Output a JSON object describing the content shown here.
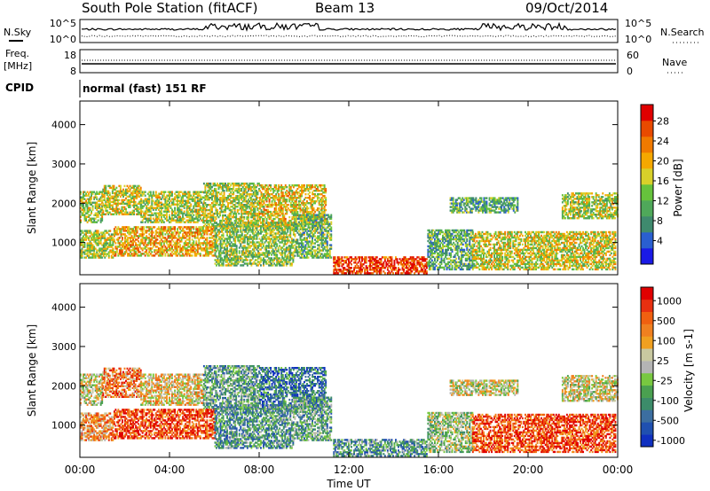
{
  "header": {
    "station": "South Pole Station (fitACF)",
    "beam": "Beam 13",
    "date": "09/Oct/2014"
  },
  "noise_panel": {
    "left_label": "N.Sky",
    "right_label": "N.Search",
    "left_ticks": [
      "10^5",
      "10^0"
    ],
    "right_ticks": [
      "10^5",
      "10^0"
    ]
  },
  "freq_panel": {
    "left_label": "Freq.",
    "left_unit": "[MHz]",
    "left_ticks": [
      "18",
      "8"
    ],
    "right_label": "Nave",
    "right_ticks": [
      "60",
      "0"
    ]
  },
  "cpid": {
    "label": "CPID",
    "value": "normal (fast) 151 RF"
  },
  "chart_data": [
    {
      "type": "heatmap",
      "parameter": "Power",
      "ylabel": "Slant Range [km]",
      "ylim": [
        180,
        4600
      ],
      "yticks": [
        1000,
        2000,
        3000,
        4000
      ],
      "xlim": [
        0,
        24
      ],
      "colorbar": {
        "label": "Power [dB]",
        "ticks": [
          "4",
          "8",
          "12",
          "16",
          "20",
          "24",
          "28"
        ],
        "colors": [
          "#1a1ae6",
          "#2a5fd0",
          "#3f8a6e",
          "#4fa85a",
          "#66c23c",
          "#d8d02a",
          "#f5a800",
          "#f07a00",
          "#e84a00",
          "#e00000"
        ]
      },
      "echo_regions": [
        {
          "t0": 0.0,
          "t1": 1.0,
          "r0": 1500,
          "r1": 2300,
          "level": 0.5
        },
        {
          "t0": 1.0,
          "t1": 2.7,
          "r0": 1700,
          "r1": 2450,
          "level": 0.55
        },
        {
          "t0": 2.7,
          "t1": 5.5,
          "r0": 1500,
          "r1": 2300,
          "level": 0.5
        },
        {
          "t0": 5.5,
          "t1": 8.0,
          "r0": 1400,
          "r1": 2500,
          "level": 0.5
        },
        {
          "t0": 8.0,
          "t1": 11.0,
          "r0": 1400,
          "r1": 2450,
          "level": 0.6
        },
        {
          "t0": 0.0,
          "t1": 1.5,
          "r0": 600,
          "r1": 1300,
          "level": 0.5
        },
        {
          "t0": 1.5,
          "t1": 6.0,
          "r0": 650,
          "r1": 1400,
          "level": 0.65
        },
        {
          "t0": 6.0,
          "t1": 9.5,
          "r0": 400,
          "r1": 1500,
          "level": 0.45
        },
        {
          "t0": 9.5,
          "t1": 11.2,
          "r0": 600,
          "r1": 1700,
          "level": 0.4
        },
        {
          "t0": 11.3,
          "t1": 15.5,
          "r0": 200,
          "r1": 650,
          "level": 0.9
        },
        {
          "t0": 15.5,
          "t1": 17.5,
          "r0": 300,
          "r1": 1300,
          "level": 0.35
        },
        {
          "t0": 17.5,
          "t1": 23.9,
          "r0": 300,
          "r1": 1250,
          "level": 0.55
        },
        {
          "t0": 16.5,
          "t1": 19.5,
          "r0": 1750,
          "r1": 2150,
          "level": 0.35
        },
        {
          "t0": 21.5,
          "t1": 24.0,
          "r0": 1600,
          "r1": 2250,
          "level": 0.5
        }
      ]
    },
    {
      "type": "heatmap",
      "parameter": "Velocity",
      "ylabel": "Slant Range [km]",
      "ylim": [
        180,
        4600
      ],
      "yticks": [
        1000,
        2000,
        3000,
        4000
      ],
      "xlim": [
        0,
        24
      ],
      "xticks": [
        "00:00",
        "04:00",
        "08:00",
        "12:00",
        "16:00",
        "20:00",
        "00:00"
      ],
      "xlabel": "Time UT",
      "colorbar": {
        "label": "Velocity [m s-1]",
        "ticks": [
          "1000",
          "500",
          "100",
          "25",
          "-25",
          "-100",
          "-500",
          "-1000"
        ],
        "colors": [
          "#1030c0",
          "#2050b0",
          "#3c6ea0",
          "#3c8c6a",
          "#4aa050",
          "#78c840",
          "#b4b4b4",
          "#c8c8a0",
          "#f0a020",
          "#f08020",
          "#f06010",
          "#e83010",
          "#e00000"
        ]
      },
      "echo_regions": [
        {
          "t0": 0.0,
          "t1": 1.0,
          "r0": 1500,
          "r1": 2300,
          "level": 0.55
        },
        {
          "t0": 1.0,
          "t1": 2.7,
          "r0": 1700,
          "r1": 2450,
          "level": 0.75
        },
        {
          "t0": 2.7,
          "t1": 5.5,
          "r0": 1500,
          "r1": 2300,
          "level": 0.6
        },
        {
          "t0": 5.5,
          "t1": 8.0,
          "r0": 1400,
          "r1": 2500,
          "level": 0.35
        },
        {
          "t0": 8.0,
          "t1": 11.0,
          "r0": 1400,
          "r1": 2450,
          "level": 0.2
        },
        {
          "t0": 0.0,
          "t1": 1.5,
          "r0": 600,
          "r1": 1300,
          "level": 0.7
        },
        {
          "t0": 1.5,
          "t1": 6.0,
          "r0": 650,
          "r1": 1400,
          "level": 0.85
        },
        {
          "t0": 6.0,
          "t1": 9.5,
          "r0": 400,
          "r1": 1500,
          "level": 0.3
        },
        {
          "t0": 9.5,
          "t1": 11.2,
          "r0": 600,
          "r1": 1700,
          "level": 0.35
        },
        {
          "t0": 11.3,
          "t1": 15.5,
          "r0": 200,
          "r1": 650,
          "level": 0.3
        },
        {
          "t0": 15.5,
          "t1": 17.5,
          "r0": 300,
          "r1": 1300,
          "level": 0.45
        },
        {
          "t0": 17.5,
          "t1": 23.9,
          "r0": 300,
          "r1": 1250,
          "level": 0.85
        },
        {
          "t0": 16.5,
          "t1": 19.5,
          "r0": 1750,
          "r1": 2150,
          "level": 0.55
        },
        {
          "t0": 21.5,
          "t1": 24.0,
          "r0": 1600,
          "r1": 2250,
          "level": 0.55
        }
      ]
    }
  ]
}
